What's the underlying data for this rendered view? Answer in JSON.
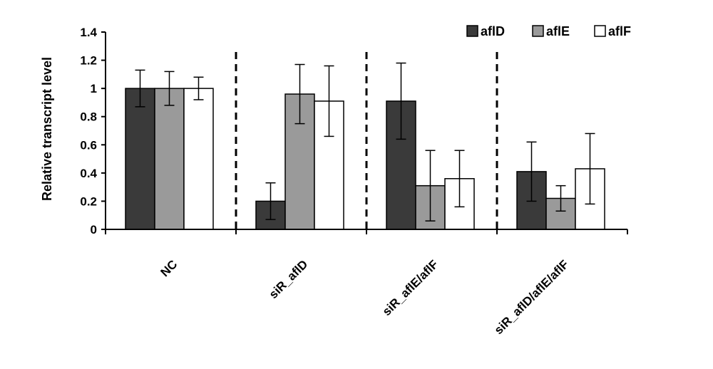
{
  "chart_data": {
    "type": "bar",
    "ylabel": "Relative transcript level",
    "xlabel": "",
    "ylim": [
      0,
      1.4
    ],
    "yticks": [
      "0",
      "0.2",
      "0.4",
      "0.6",
      "0.8",
      "1",
      "1.2",
      "1.4"
    ],
    "categories": [
      "NC",
      "siR_aflD",
      "siR_aflE/aflF",
      "siR_aflD/aflE/aflF"
    ],
    "series": [
      {
        "name": "aflD",
        "color": "#3a3a3a",
        "values": [
          1.0,
          0.2,
          0.91,
          0.41
        ],
        "errors": [
          0.13,
          0.13,
          0.27,
          0.21
        ]
      },
      {
        "name": "aflE",
        "color": "#9a9a9a",
        "values": [
          1.0,
          0.96,
          0.31,
          0.22
        ],
        "errors": [
          0.12,
          0.21,
          0.25,
          0.09
        ]
      },
      {
        "name": "aflF",
        "color": "#ffffff",
        "values": [
          1.0,
          0.91,
          0.36,
          0.43
        ],
        "errors": [
          0.08,
          0.25,
          0.2,
          0.25
        ]
      }
    ],
    "group_separators": "dashed",
    "legend_position": "top-right",
    "grid": false
  }
}
